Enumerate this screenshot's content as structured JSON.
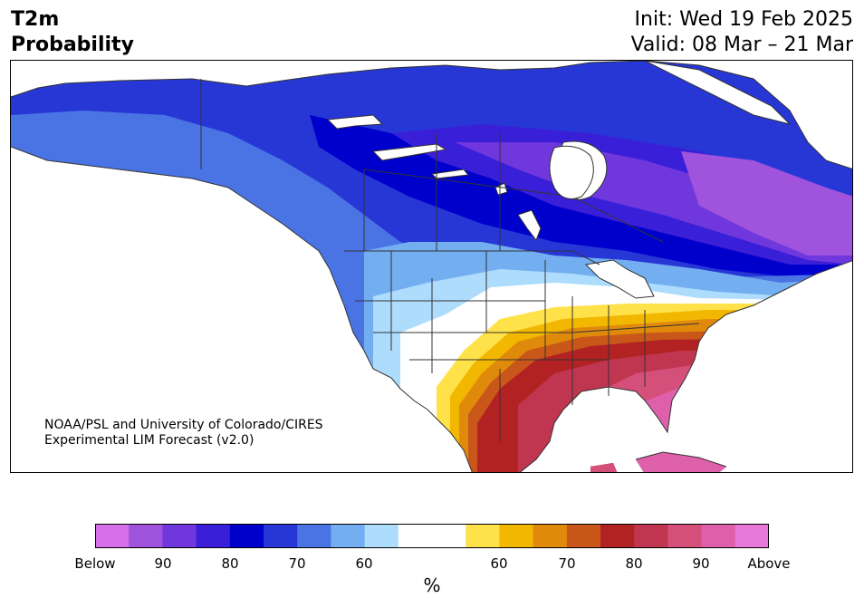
{
  "header": {
    "title_line1": "T2m",
    "title_line2": "Probability",
    "init_text": "Init: Wed 19 Feb 2025",
    "valid_text": "Valid: 08 Mar – 21 Mar"
  },
  "credit": {
    "line1": "NOAA/PSL and University of Colorado/CIRES",
    "line2": "Experimental LIM Forecast (v2.0)"
  },
  "colorbar": {
    "unit": "%",
    "colors": [
      "#d66fe8",
      "#a053dc",
      "#7038dc",
      "#3a1fd8",
      "#0000cc",
      "#2637d6",
      "#4a73e4",
      "#73aef0",
      "#addcfc",
      "#ffffff",
      "#ffffff",
      "#ffe24a",
      "#f2b700",
      "#e08a0c",
      "#c9571a",
      "#b22222",
      "#c0354f",
      "#d4507a",
      "#de60aa",
      "#e878da"
    ],
    "tick_labels": [
      "Below",
      "90",
      "80",
      "70",
      "60",
      "60",
      "70",
      "80",
      "90",
      "Above"
    ]
  },
  "palette": {
    "ocean": "#ffffff",
    "border": "#333333"
  }
}
